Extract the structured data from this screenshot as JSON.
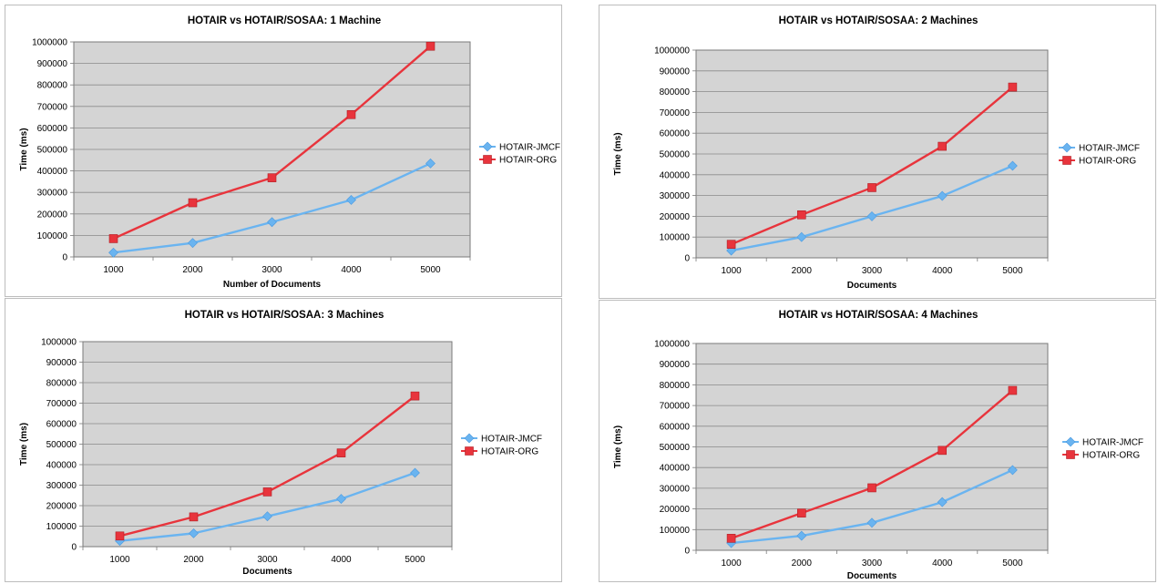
{
  "chart_data": [
    {
      "type": "line",
      "title": "HOTAIR vs HOTAIR/SOSAA: 1 Machine",
      "xlabel": "Number of Documents",
      "ylabel": "Time (ms)",
      "categories": [
        "1000",
        "2000",
        "3000",
        "4000",
        "5000"
      ],
      "ylim": [
        0,
        1000000
      ],
      "yticks": [
        "0",
        "100000",
        "200000",
        "300000",
        "400000",
        "500000",
        "600000",
        "700000",
        "800000",
        "900000",
        "1000000"
      ],
      "grid": true,
      "legend": "right",
      "series": [
        {
          "name": "HOTAIR-JMCF",
          "color": "#6ab4f0",
          "marker": "diamond",
          "values": [
            20000,
            65000,
            162000,
            265000,
            435000
          ]
        },
        {
          "name": "HOTAIR-ORG",
          "color": "#e8343c",
          "marker": "square",
          "values": [
            85000,
            252000,
            368000,
            662000,
            980000
          ]
        }
      ]
    },
    {
      "type": "line",
      "title": "HOTAIR vs HOTAIR/SOSAA: 2 Machines",
      "xlabel": "Documents",
      "ylabel": "Time (ms)",
      "categories": [
        "1000",
        "2000",
        "3000",
        "4000",
        "5000"
      ],
      "ylim": [
        0,
        1000000
      ],
      "yticks": [
        "0",
        "100000",
        "200000",
        "300000",
        "400000",
        "500000",
        "600000",
        "700000",
        "800000",
        "900000",
        "1000000"
      ],
      "grid": true,
      "legend": "right",
      "series": [
        {
          "name": "HOTAIR-JMCF",
          "color": "#6ab4f0",
          "marker": "diamond",
          "values": [
            35000,
            100000,
            200000,
            298000,
            443000
          ]
        },
        {
          "name": "HOTAIR-ORG",
          "color": "#e8343c",
          "marker": "square",
          "values": [
            65000,
            207000,
            338000,
            537000,
            822000
          ]
        }
      ]
    },
    {
      "type": "line",
      "title": "HOTAIR vs HOTAIR/SOSAA: 3 Machines",
      "xlabel": "Documents",
      "ylabel": "Time (ms)",
      "categories": [
        "1000",
        "2000",
        "3000",
        "4000",
        "5000"
      ],
      "ylim": [
        0,
        1000000
      ],
      "yticks": [
        "0",
        "100000",
        "200000",
        "300000",
        "400000",
        "500000",
        "600000",
        "700000",
        "800000",
        "900000",
        "1000000"
      ],
      "grid": true,
      "legend": "right",
      "series": [
        {
          "name": "HOTAIR-JMCF",
          "color": "#6ab4f0",
          "marker": "diamond",
          "values": [
            28000,
            65000,
            148000,
            233000,
            360000
          ]
        },
        {
          "name": "HOTAIR-ORG",
          "color": "#e8343c",
          "marker": "square",
          "values": [
            52000,
            145000,
            267000,
            457000,
            735000
          ]
        }
      ]
    },
    {
      "type": "line",
      "title": "HOTAIR vs HOTAIR/SOSAA: 4 Machines",
      "xlabel": "Documents",
      "ylabel": "Time (ms)",
      "categories": [
        "1000",
        "2000",
        "3000",
        "4000",
        "5000"
      ],
      "ylim": [
        0,
        1000000
      ],
      "yticks": [
        "0",
        "100000",
        "200000",
        "300000",
        "400000",
        "500000",
        "600000",
        "700000",
        "800000",
        "900000",
        "1000000"
      ],
      "grid": true,
      "legend": "right",
      "series": [
        {
          "name": "HOTAIR-JMCF",
          "color": "#6ab4f0",
          "marker": "diamond",
          "values": [
            35000,
            70000,
            133000,
            233000,
            388000
          ]
        },
        {
          "name": "HOTAIR-ORG",
          "color": "#e8343c",
          "marker": "square",
          "values": [
            58000,
            180000,
            302000,
            483000,
            773000
          ]
        }
      ]
    }
  ]
}
